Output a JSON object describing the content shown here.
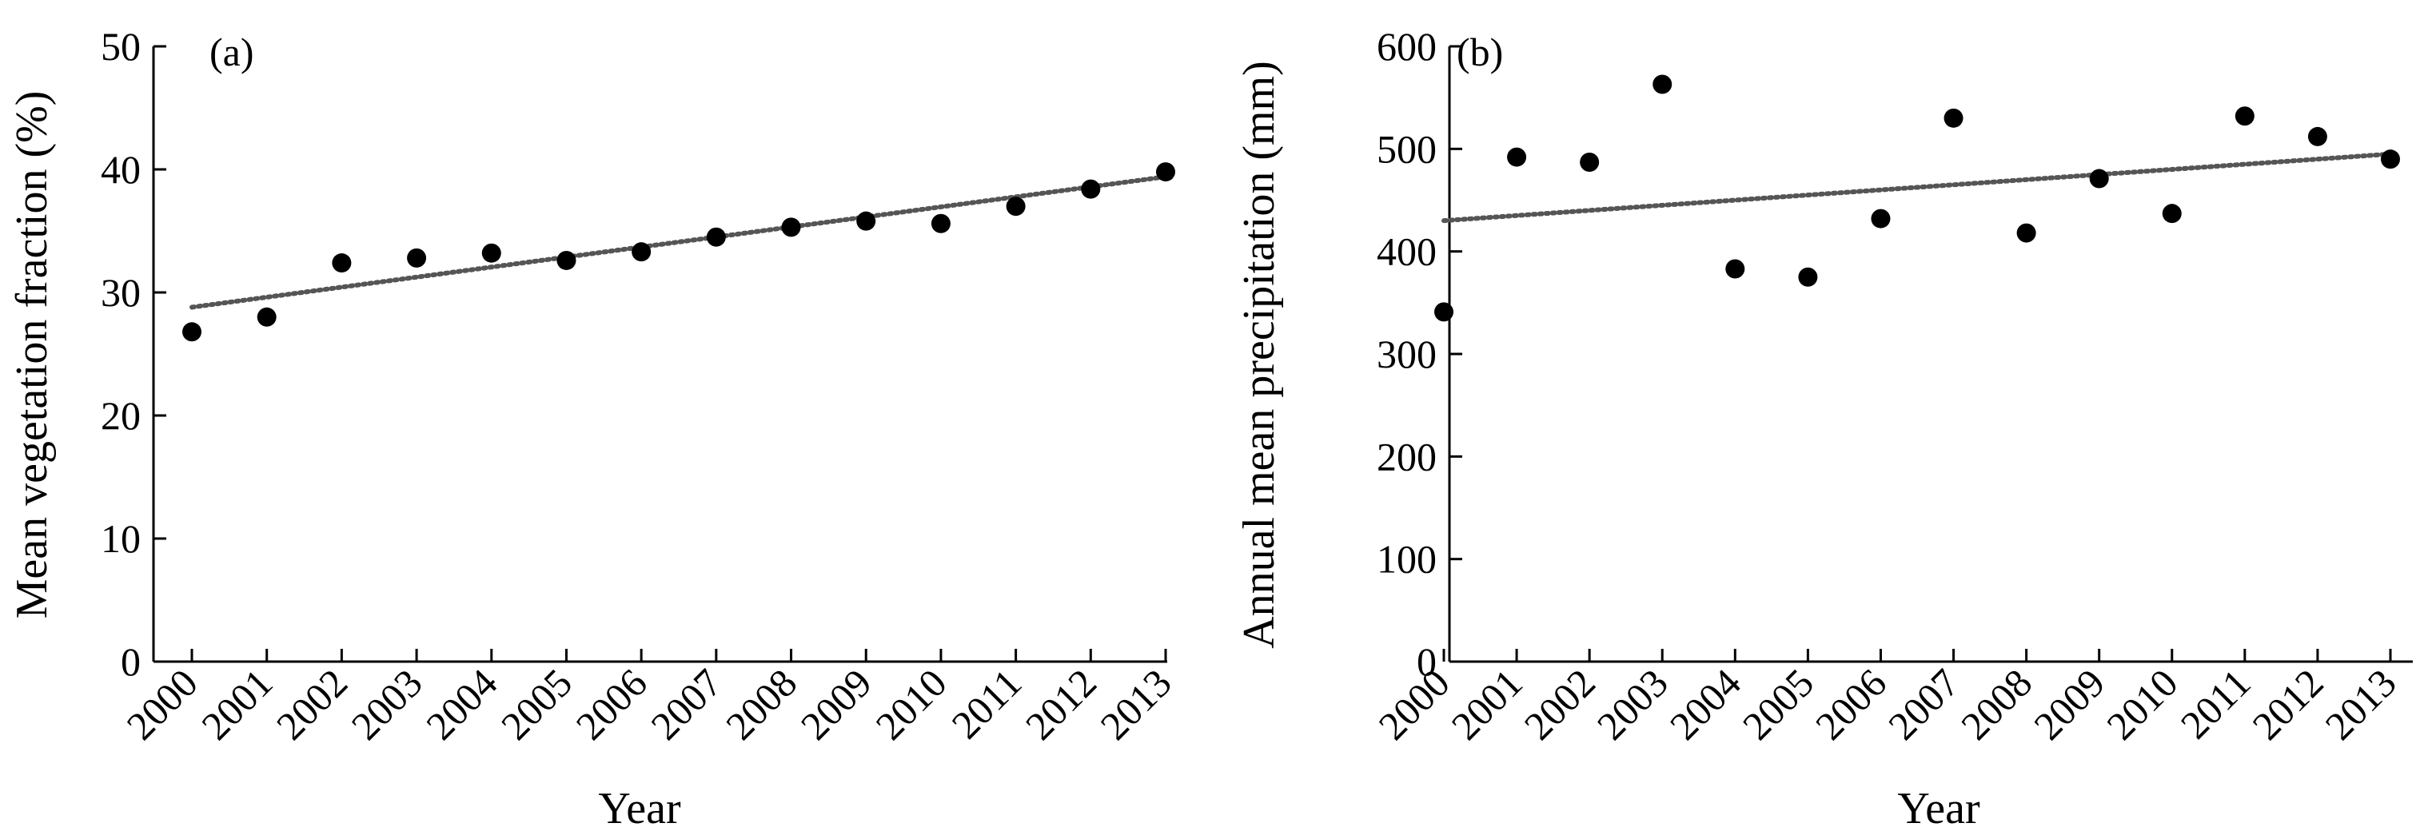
{
  "colors": {
    "points": "#000000",
    "trend": "#555555",
    "axes": "#000000",
    "background": "#ffffff"
  },
  "chart_data": [
    {
      "type": "scatter",
      "panel_label": "(a)",
      "xlabel": "Year",
      "ylabel": "Mean vegetation fraction (%)",
      "x": [
        "2000",
        "2001",
        "2002",
        "2003",
        "2004",
        "2005",
        "2006",
        "2007",
        "2008",
        "2009",
        "2010",
        "2011",
        "2012",
        "2013"
      ],
      "values": [
        26.8,
        28.0,
        32.4,
        32.8,
        33.2,
        32.6,
        33.3,
        34.5,
        35.3,
        35.8,
        35.6,
        37.0,
        38.4,
        39.8
      ],
      "trendline": {
        "start": 28.8,
        "end": 39.4,
        "style": "dotted"
      },
      "ylim": [
        0,
        50
      ],
      "yticks": [
        "0",
        "10",
        "20",
        "30",
        "40",
        "50"
      ],
      "grid": false,
      "legend": "none"
    },
    {
      "type": "scatter",
      "panel_label": "(b)",
      "xlabel": "Year",
      "ylabel": "Annual mean precipitation (mm)",
      "x": [
        "2000",
        "2001",
        "2002",
        "2003",
        "2004",
        "2005",
        "2006",
        "2007",
        "2008",
        "2009",
        "2010",
        "2011",
        "2012",
        "2013"
      ],
      "values": [
        341,
        492,
        487,
        563,
        383,
        375,
        432,
        530,
        418,
        471,
        437,
        532,
        512,
        490
      ],
      "trendline": {
        "start": 430,
        "end": 495,
        "style": "dotted"
      },
      "ylim": [
        0,
        600
      ],
      "yticks": [
        "0",
        "100",
        "200",
        "300",
        "400",
        "500",
        "600"
      ],
      "grid": false,
      "legend": "none"
    }
  ]
}
